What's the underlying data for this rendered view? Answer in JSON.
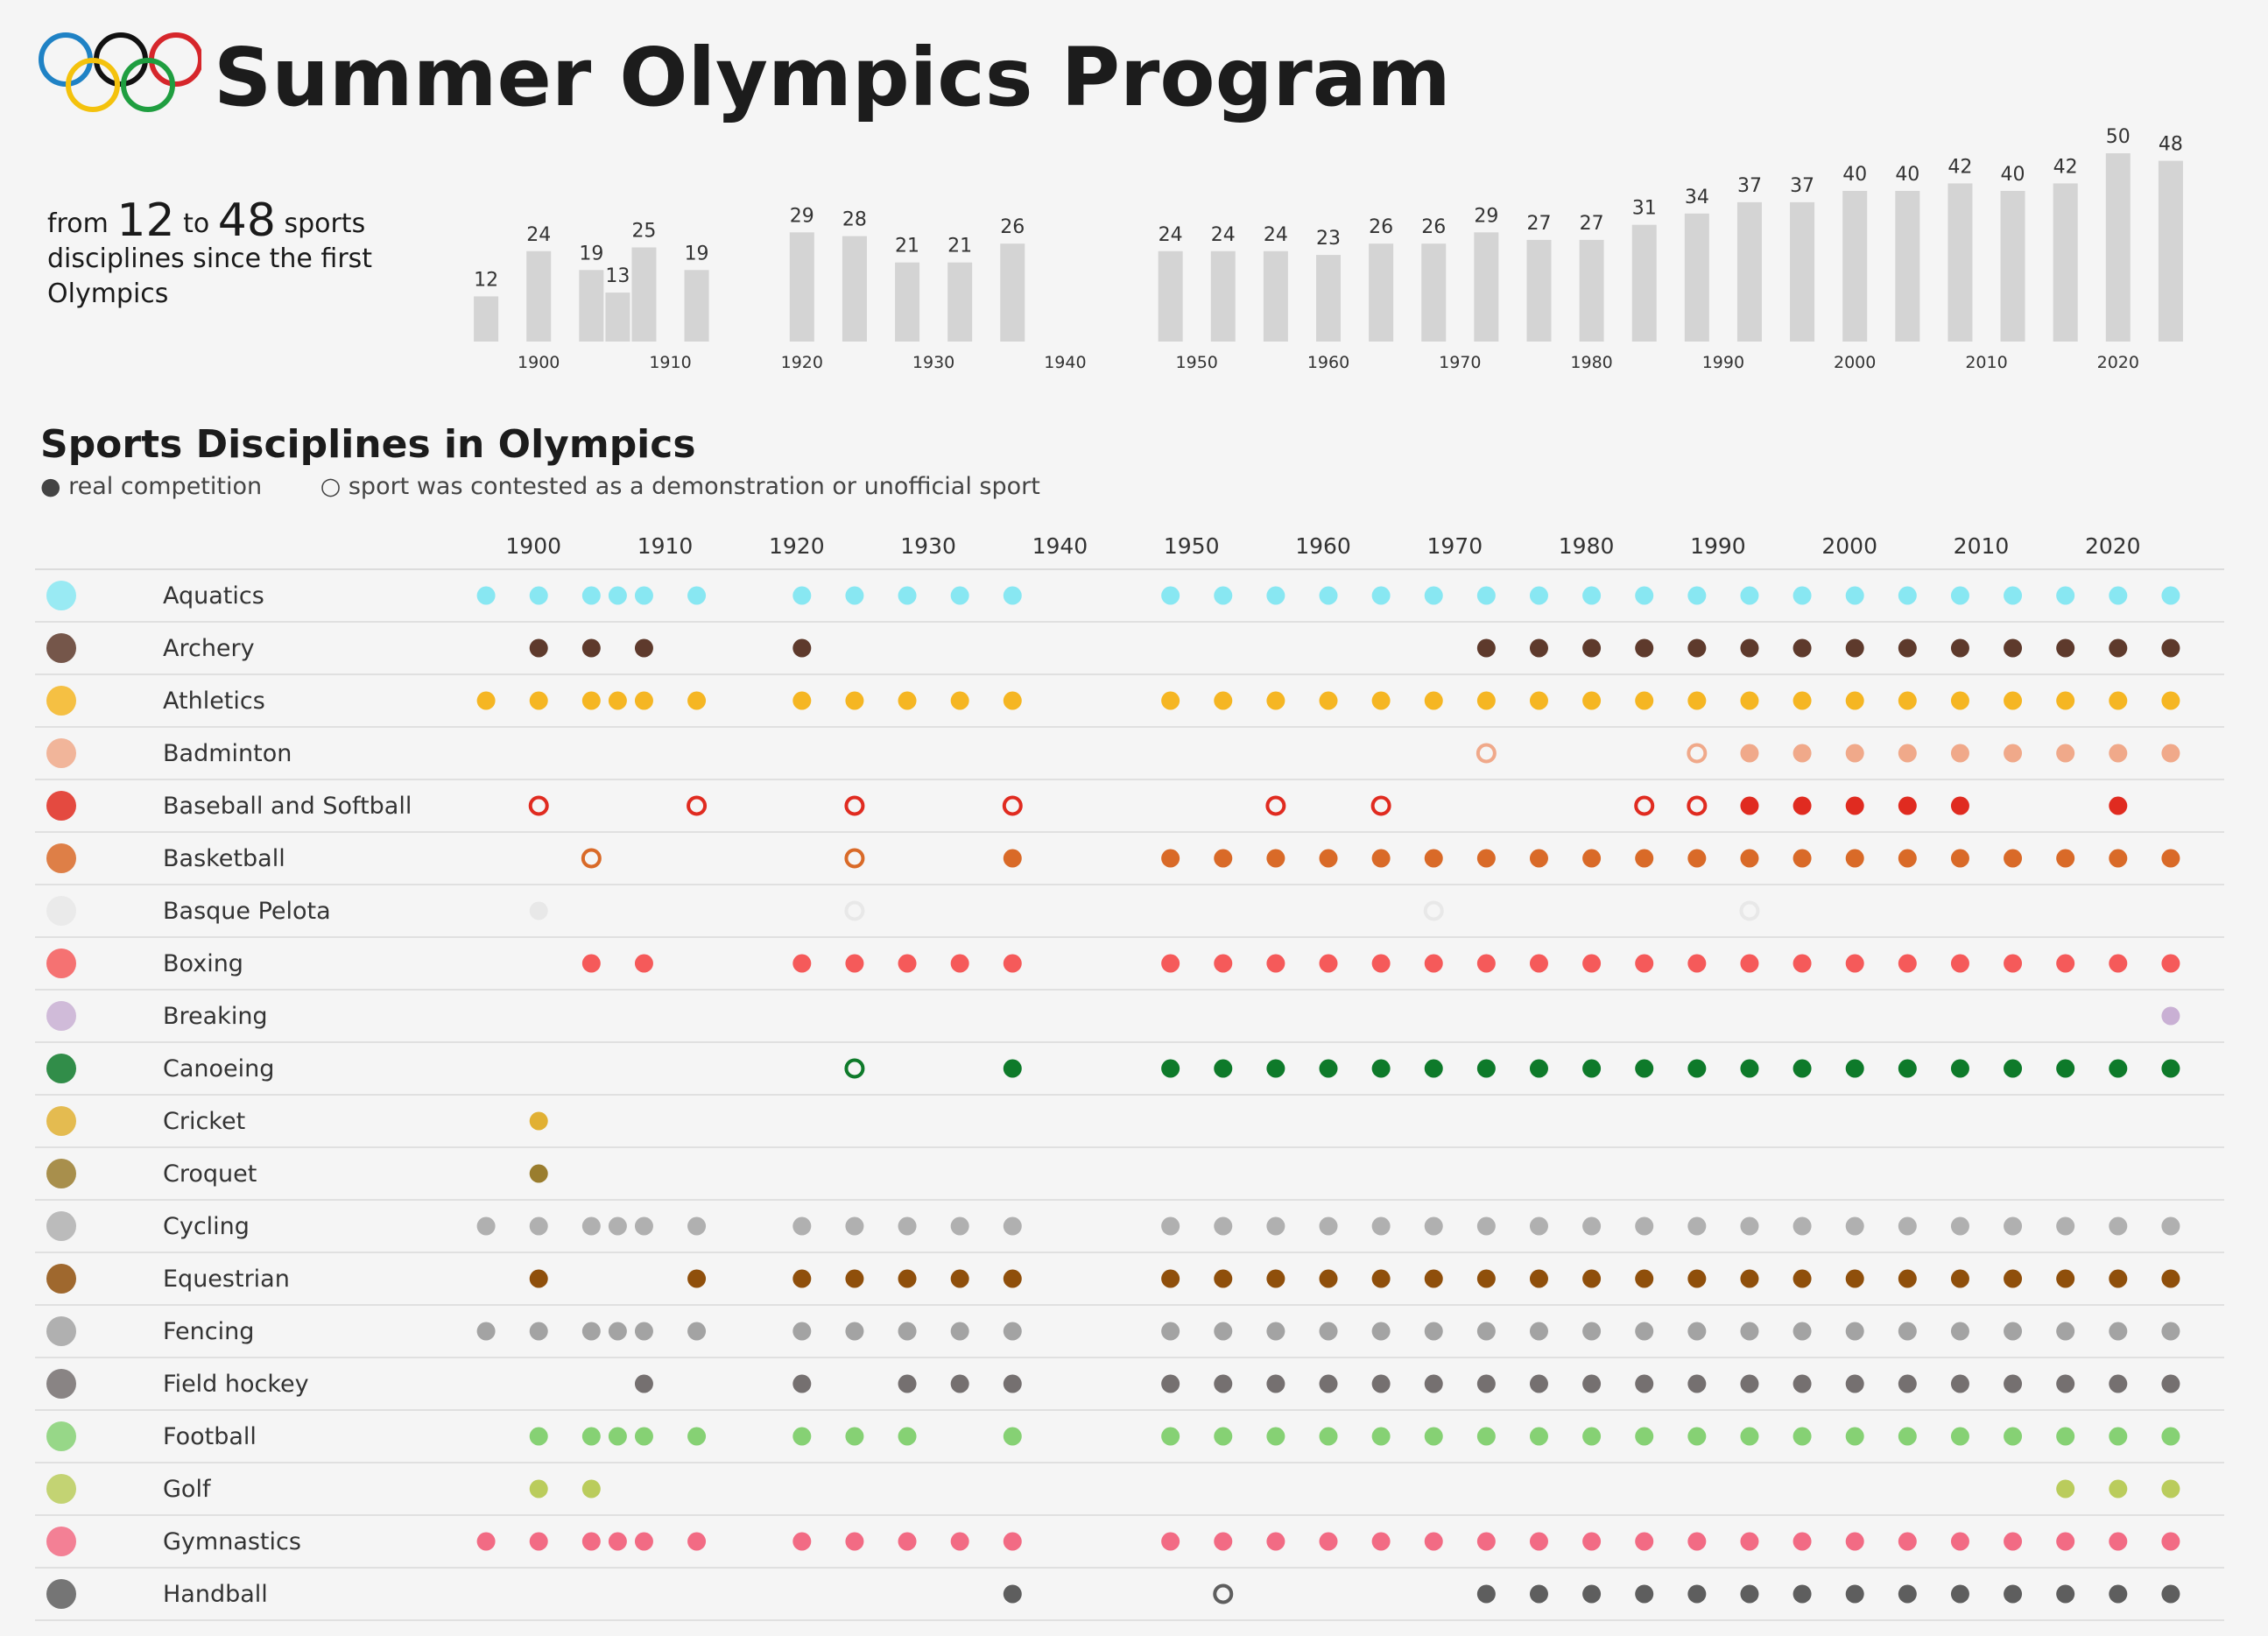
{
  "title": "Summer Olympics Program",
  "intro": {
    "pre": "from ",
    "min": "12",
    "mid": " to ",
    "max": "48",
    "post": " sports disciplines since the first Olympics"
  },
  "section_title": "Sports Disciplines in Olympics",
  "legend": {
    "real": "● real competition",
    "demo": "○ sport was contested as a demonstration or unofficial sport"
  },
  "chart_data": [
    {
      "type": "bar",
      "x": [
        1896,
        1900,
        1904,
        1906,
        1908,
        1912,
        1920,
        1924,
        1928,
        1932,
        1936,
        1948,
        1952,
        1956,
        1960,
        1964,
        1968,
        1972,
        1976,
        1980,
        1984,
        1988,
        1992,
        1996,
        2000,
        2004,
        2008,
        2012,
        2016,
        2020,
        2024
      ],
      "values": [
        12,
        24,
        19,
        13,
        25,
        19,
        29,
        28,
        21,
        21,
        26,
        24,
        24,
        24,
        23,
        26,
        26,
        29,
        27,
        27,
        31,
        34,
        37,
        37,
        40,
        40,
        42,
        40,
        42,
        50,
        48
      ],
      "x_ticks": [
        1900,
        1910,
        1920,
        1930,
        1940,
        1950,
        1960,
        1970,
        1980,
        1990,
        2000,
        2010,
        2020
      ],
      "xlim": [
        1893,
        2027
      ],
      "ylim": [
        0,
        50
      ],
      "bar_color": "#d4d4d4"
    },
    {
      "type": "scatter",
      "x_ticks": [
        1900,
        1910,
        1920,
        1930,
        1940,
        1950,
        1960,
        1970,
        1980,
        1990,
        2000,
        2010,
        2020
      ],
      "xlim": [
        1893,
        2027
      ],
      "rows": [
        {
          "name": "Aquatics",
          "color": "#88e7f2",
          "icon": "swimmer-icon",
          "real": [
            1896,
            1900,
            1904,
            1906,
            1908,
            1912,
            1920,
            1924,
            1928,
            1932,
            1936,
            1948,
            1952,
            1956,
            1960,
            1964,
            1968,
            1972,
            1976,
            1980,
            1984,
            1988,
            1992,
            1996,
            2000,
            2004,
            2008,
            2012,
            2016,
            2020,
            2024
          ],
          "demo": []
        },
        {
          "name": "Archery",
          "color": "#5e3a2c",
          "icon": "bow-and-arrow-icon",
          "real": [
            1900,
            1904,
            1908,
            1920,
            1972,
            1976,
            1980,
            1984,
            1988,
            1992,
            1996,
            2000,
            2004,
            2008,
            2012,
            2016,
            2020,
            2024
          ],
          "demo": []
        },
        {
          "name": "Athletics",
          "color": "#f5b623",
          "icon": "runner-icon",
          "real": [
            1896,
            1900,
            1904,
            1906,
            1908,
            1912,
            1920,
            1924,
            1928,
            1932,
            1936,
            1948,
            1952,
            1956,
            1960,
            1964,
            1968,
            1972,
            1976,
            1980,
            1984,
            1988,
            1992,
            1996,
            2000,
            2004,
            2008,
            2012,
            2016,
            2020,
            2024
          ],
          "demo": []
        },
        {
          "name": "Badminton",
          "color": "#f0a98a",
          "icon": "badminton-racket-icon",
          "real": [
            1992,
            1996,
            2000,
            2004,
            2008,
            2012,
            2016,
            2020,
            2024
          ],
          "demo": [
            1972,
            1988
          ]
        },
        {
          "name": "Baseball and Softball",
          "color": "#e02b20",
          "icon": "baseball-icon",
          "real": [
            1992,
            1996,
            2000,
            2004,
            2008,
            2020
          ],
          "demo": [
            1900,
            1912,
            1924,
            1936,
            1956,
            1964,
            1984,
            1988
          ]
        },
        {
          "name": "Basketball",
          "color": "#d96a28",
          "icon": "basketball-icon",
          "real": [
            1936,
            1948,
            1952,
            1956,
            1960,
            1964,
            1968,
            1972,
            1976,
            1980,
            1984,
            1988,
            1992,
            1996,
            2000,
            2004,
            2008,
            2012,
            2016,
            2020,
            2024
          ],
          "demo": [
            1904,
            1924
          ]
        },
        {
          "name": "Basque Pelota",
          "color": "#e8e8e8",
          "icon": "pelota-ball-icon",
          "real": [
            1900
          ],
          "demo": [
            1924,
            1968,
            1992
          ]
        },
        {
          "name": "Boxing",
          "color": "#f55a5a",
          "icon": "boxing-glove-icon",
          "real": [
            1904,
            1908,
            1920,
            1924,
            1928,
            1932,
            1936,
            1948,
            1952,
            1956,
            1960,
            1964,
            1968,
            1972,
            1976,
            1980,
            1984,
            1988,
            1992,
            1996,
            2000,
            2004,
            2008,
            2012,
            2016,
            2020,
            2024
          ],
          "demo": []
        },
        {
          "name": "Breaking",
          "color": "#c9b0d4",
          "icon": "breakdancer-icon",
          "real": [
            2024
          ],
          "demo": []
        },
        {
          "name": "Canoeing",
          "color": "#0e7a2a",
          "icon": "canoe-icon",
          "real": [
            1936,
            1948,
            1952,
            1956,
            1960,
            1964,
            1968,
            1972,
            1976,
            1980,
            1984,
            1988,
            1992,
            1996,
            2000,
            2004,
            2008,
            2012,
            2016,
            2020,
            2024
          ],
          "demo": [
            1924
          ]
        },
        {
          "name": "Cricket",
          "color": "#e1b033",
          "icon": "cricket-bat-icon",
          "real": [
            1900
          ],
          "demo": []
        },
        {
          "name": "Croquet",
          "color": "#9a7d2e",
          "icon": "croquet-mallet-icon",
          "real": [
            1900
          ],
          "demo": []
        },
        {
          "name": "Cycling",
          "color": "#b0b0b0",
          "icon": "cyclist-icon",
          "real": [
            1896,
            1900,
            1904,
            1906,
            1908,
            1912,
            1920,
            1924,
            1928,
            1932,
            1936,
            1948,
            1952,
            1956,
            1960,
            1964,
            1968,
            1972,
            1976,
            1980,
            1984,
            1988,
            1992,
            1996,
            2000,
            2004,
            2008,
            2012,
            2016,
            2020,
            2024
          ],
          "demo": []
        },
        {
          "name": "Equestrian",
          "color": "#8f4f0b",
          "icon": "horse-rider-icon",
          "real": [
            1900,
            1912,
            1920,
            1924,
            1928,
            1932,
            1936,
            1948,
            1952,
            1956,
            1960,
            1964,
            1968,
            1972,
            1976,
            1980,
            1984,
            1988,
            1992,
            1996,
            2000,
            2004,
            2008,
            2012,
            2016,
            2020,
            2024
          ],
          "demo": []
        },
        {
          "name": "Fencing",
          "color": "#a3a3a3",
          "icon": "fencer-icon",
          "real": [
            1896,
            1900,
            1904,
            1906,
            1908,
            1912,
            1920,
            1924,
            1928,
            1932,
            1936,
            1948,
            1952,
            1956,
            1960,
            1964,
            1968,
            1972,
            1976,
            1980,
            1984,
            1988,
            1992,
            1996,
            2000,
            2004,
            2008,
            2012,
            2016,
            2020,
            2024
          ],
          "demo": []
        },
        {
          "name": "Field hockey",
          "color": "#757070",
          "icon": "hockey-stick-icon",
          "real": [
            1908,
            1920,
            1928,
            1932,
            1936,
            1948,
            1952,
            1956,
            1960,
            1964,
            1968,
            1972,
            1976,
            1980,
            1984,
            1988,
            1992,
            1996,
            2000,
            2004,
            2008,
            2012,
            2016,
            2020,
            2024
          ],
          "demo": []
        },
        {
          "name": "Football",
          "color": "#86d174",
          "icon": "soccer-ball-icon",
          "real": [
            1900,
            1904,
            1906,
            1908,
            1912,
            1920,
            1924,
            1928,
            1936,
            1948,
            1952,
            1956,
            1960,
            1964,
            1968,
            1972,
            1976,
            1980,
            1984,
            1988,
            1992,
            1996,
            2000,
            2004,
            2008,
            2012,
            2016,
            2020,
            2024
          ],
          "demo": []
        },
        {
          "name": "Golf",
          "color": "#bacc5c",
          "icon": "golfer-icon",
          "real": [
            1900,
            1904,
            2016,
            2020,
            2024
          ],
          "demo": []
        },
        {
          "name": "Gymnastics",
          "color": "#f26b84",
          "icon": "gymnast-icon",
          "real": [
            1896,
            1900,
            1904,
            1906,
            1908,
            1912,
            1920,
            1924,
            1928,
            1932,
            1936,
            1948,
            1952,
            1956,
            1960,
            1964,
            1968,
            1972,
            1976,
            1980,
            1984,
            1988,
            1992,
            1996,
            2000,
            2004,
            2008,
            2012,
            2016,
            2020,
            2024
          ],
          "demo": []
        },
        {
          "name": "Handball",
          "color": "#5e5e5e",
          "icon": "handball-player-icon",
          "real": [
            1936,
            1972,
            1976,
            1980,
            1984,
            1988,
            1992,
            1996,
            2000,
            2004,
            2008,
            2012,
            2016,
            2020,
            2024
          ],
          "demo": [
            1952
          ]
        }
      ]
    }
  ]
}
